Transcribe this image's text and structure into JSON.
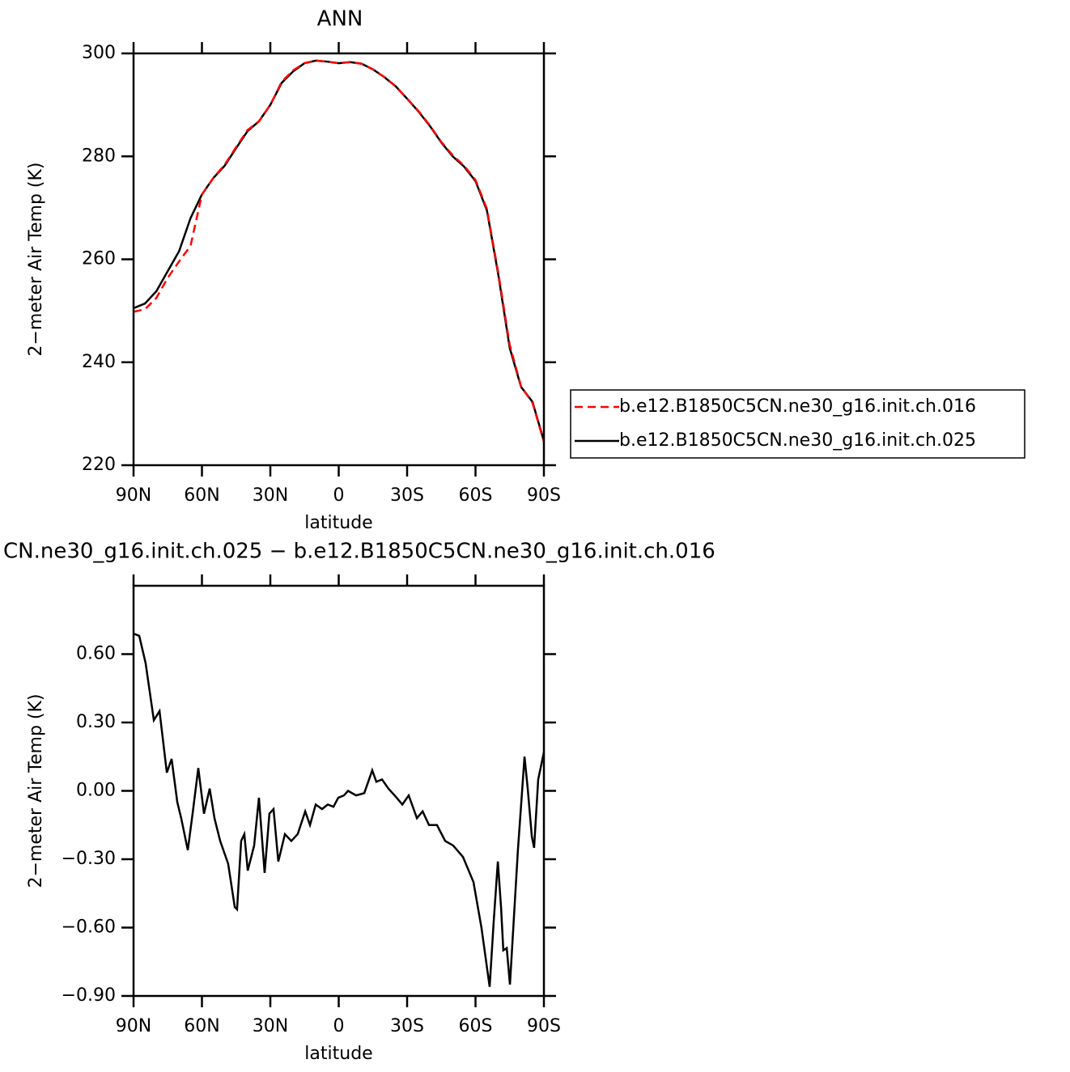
{
  "chart_data": [
    {
      "type": "line",
      "title": "ANN",
      "xlabel": "latitude",
      "ylabel": "2−meter Air Temp (K)",
      "x": [
        90,
        85,
        80,
        75,
        70,
        65,
        60,
        55,
        50,
        45,
        40,
        35,
        30,
        25,
        20,
        15,
        10,
        5,
        0,
        -5,
        -10,
        -15,
        -20,
        -25,
        -30,
        -35,
        -40,
        -45,
        -50,
        -55,
        -60,
        -65,
        -70,
        -75,
        -80,
        -85,
        -90
      ],
      "xlim": [
        90,
        -90
      ],
      "xticks": [
        {
          "value": 90,
          "label": "90N"
        },
        {
          "value": 60,
          "label": "60N"
        },
        {
          "value": 30,
          "label": "30N"
        },
        0,
        {
          "value": -30,
          "label": "30S"
        },
        {
          "value": -60,
          "label": "60S"
        },
        {
          "value": -90,
          "label": "90S"
        }
      ],
      "ylim": [
        220,
        300
      ],
      "yticks": [
        220,
        240,
        260,
        280,
        300
      ],
      "legend": "right",
      "series": [
        {
          "name": "b.e12.B1850C5CN.ne30_g16.init.ch.016",
          "color": "#ff0000",
          "dash": true,
          "values": [
            249.8,
            250.3,
            252.5,
            256.4,
            259.6,
            262.6,
            272.6,
            275.8,
            278.4,
            281.8,
            285.1,
            286.8,
            290.0,
            294.5,
            296.7,
            298.1,
            298.6,
            298.4,
            298.1,
            298.3,
            298.0,
            296.9,
            295.4,
            293.6,
            291.2,
            288.8,
            286.0,
            282.8,
            280.2,
            278.2,
            275.4,
            269.8,
            257.4,
            243.4,
            235.3,
            232.1,
            224.5
          ]
        },
        {
          "name": "b.e12.B1850C5CN.ne30_g16.init.ch.025",
          "color": "#000000",
          "dash": false,
          "values": [
            250.5,
            251.4,
            253.8,
            257.7,
            261.6,
            268.0,
            272.6,
            275.8,
            278.2,
            281.6,
            284.9,
            286.8,
            290.0,
            294.3,
            296.5,
            298.1,
            298.6,
            298.4,
            298.1,
            298.3,
            298.0,
            296.9,
            295.4,
            293.6,
            291.2,
            288.7,
            285.9,
            282.7,
            280.0,
            278.0,
            275.2,
            269.5,
            257.0,
            242.8,
            235.2,
            232.3,
            224.7
          ]
        }
      ]
    },
    {
      "type": "line",
      "title": "CN.ne30_g16.init.ch.025 − b.e12.B1850C5CN.ne30_g16.init.ch.016",
      "xlabel": "latitude",
      "ylabel": "2−meter Air Temp (K)",
      "x": [
        90,
        87.5,
        84.7,
        81.1,
        78.6,
        75.4,
        73.3,
        70.8,
        69.1,
        66.2,
        64.1,
        61.6,
        59.1,
        56.6,
        54.5,
        52.0,
        48.5,
        45.6,
        44.6,
        42.8,
        41.4,
        39.9,
        37.1,
        35.0,
        32.5,
        30.4,
        28.6,
        26.5,
        23.6,
        20.8,
        18.0,
        14.7,
        12.6,
        10.1,
        7.3,
        4.8,
        2.3,
        0.2,
        -2.3,
        -4.1,
        -7.6,
        -11.2,
        -14.7,
        -16.5,
        -19.0,
        -21.8,
        -25.4,
        -27.9,
        -30.7,
        -34.3,
        -36.8,
        -39.6,
        -43.1,
        -46.7,
        -50.2,
        -54.5,
        -59.1,
        -62.6,
        -66.2,
        -68.0,
        -69.8,
        -71.2,
        -72.2,
        -73.7,
        -75.1,
        -78.6,
        -81.5,
        -82.9,
        -84.7,
        -85.7,
        -87.5,
        -90
      ],
      "xlim": [
        90,
        -90
      ],
      "xticks": [
        {
          "value": 90,
          "label": "90N"
        },
        {
          "value": 60,
          "label": "60N"
        },
        {
          "value": 30,
          "label": "30N"
        },
        0,
        {
          "value": -30,
          "label": "30S"
        },
        {
          "value": -60,
          "label": "60S"
        },
        {
          "value": -90,
          "label": "90S"
        }
      ],
      "ylim": [
        -0.9,
        0.9
      ],
      "yticks": [
        {
          "value": -0.9,
          "label": "−0.90"
        },
        {
          "value": -0.6,
          "label": "−0.60"
        },
        {
          "value": -0.3,
          "label": "−0.30"
        },
        {
          "value": 0,
          "label": "0.00"
        },
        {
          "value": 0.3,
          "label": "0.30"
        },
        {
          "value": 0.6,
          "label": "0.60"
        }
      ],
      "series": [
        {
          "color": "#000000",
          "dash": false,
          "values": [
            0.69,
            0.68,
            0.56,
            0.31,
            0.35,
            0.08,
            0.14,
            -0.05,
            -0.12,
            -0.26,
            -0.1,
            0.1,
            -0.1,
            0.01,
            -0.12,
            -0.22,
            -0.32,
            -0.51,
            -0.52,
            -0.22,
            -0.19,
            -0.35,
            -0.24,
            -0.03,
            -0.36,
            -0.1,
            -0.08,
            -0.31,
            -0.19,
            -0.22,
            -0.19,
            -0.09,
            -0.15,
            -0.06,
            -0.08,
            -0.06,
            -0.07,
            -0.03,
            -0.02,
            0.0,
            -0.02,
            -0.01,
            0.09,
            0.04,
            0.05,
            0.01,
            -0.03,
            -0.06,
            -0.02,
            -0.12,
            -0.09,
            -0.15,
            -0.15,
            -0.22,
            -0.24,
            -0.29,
            -0.4,
            -0.6,
            -0.86,
            -0.57,
            -0.31,
            -0.51,
            -0.7,
            -0.69,
            -0.85,
            -0.26,
            0.15,
            0.01,
            -0.2,
            -0.25,
            0.05,
            0.17
          ]
        }
      ]
    }
  ]
}
